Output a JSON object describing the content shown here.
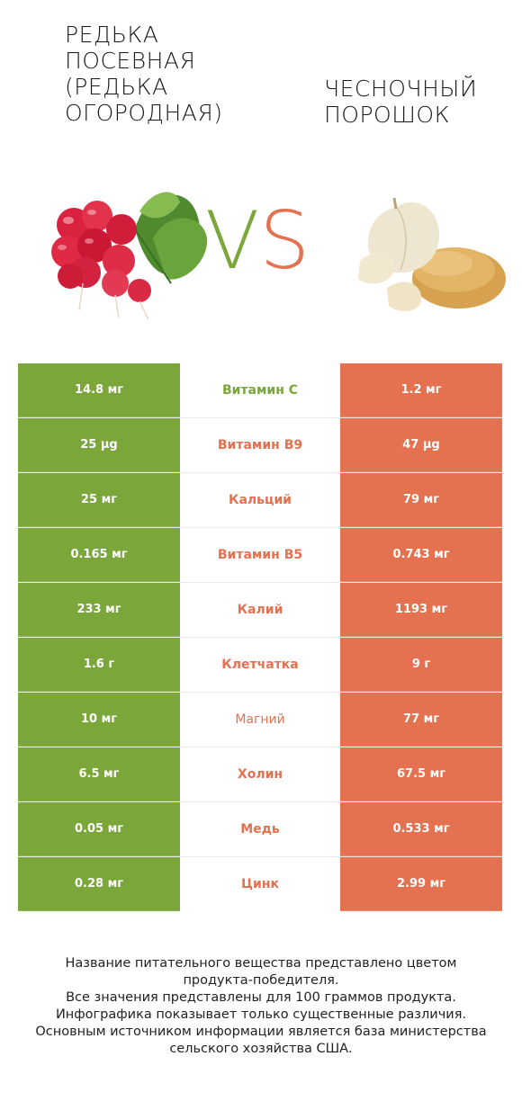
{
  "header": {
    "left_title": "РЕДЬКА\nПОСЕВНАЯ\n(РЕДЬКА\nОГОРОДНАЯ)",
    "right_title": "ЧЕСНОЧНЫЙ\nПОРОШОК",
    "vs_v": "V",
    "vs_s": "S"
  },
  "colors": {
    "left_accent": "#7aa63a",
    "right_accent": "#e4714f"
  },
  "rows": [
    {
      "left": "14.8 мг",
      "nutrient": "Витамин C",
      "right": "1.2 мг",
      "winner": "left"
    },
    {
      "left": "25 µg",
      "nutrient": "Витамин B9",
      "right": "47 µg",
      "winner": "right"
    },
    {
      "left": "25 мг",
      "nutrient": "Кальций",
      "right": "79 мг",
      "winner": "right"
    },
    {
      "left": "0.165 мг",
      "nutrient": "Витамин B5",
      "right": "0.743 мг",
      "winner": "right"
    },
    {
      "left": "233 мг",
      "nutrient": "Калий",
      "right": "1193 мг",
      "winner": "right"
    },
    {
      "left": "1.6 г",
      "nutrient": "Клетчатка",
      "right": "9 г",
      "winner": "right"
    },
    {
      "left": "10 мг",
      "nutrient": "Магний",
      "right": "77 мг",
      "winner": "right"
    },
    {
      "left": "6.5 мг",
      "nutrient": "Холин",
      "right": "67.5 мг",
      "winner": "right"
    },
    {
      "left": "0.05 мг",
      "nutrient": "Медь",
      "right": "0.533 мг",
      "winner": "right"
    },
    {
      "left": "0.28 мг",
      "nutrient": "Цинк",
      "right": "2.99 мг",
      "winner": "right"
    }
  ],
  "footer": {
    "line1": "Название питательного вещества представлено цветом",
    "line2": "продукта-победителя.",
    "line3": "Все значения представлены для 100 граммов продукта.",
    "line4": "Инфографика показывает только существенные различия.",
    "line5": "Основным источником информации является база министерства",
    "line6": "сельского хозяйства США."
  }
}
